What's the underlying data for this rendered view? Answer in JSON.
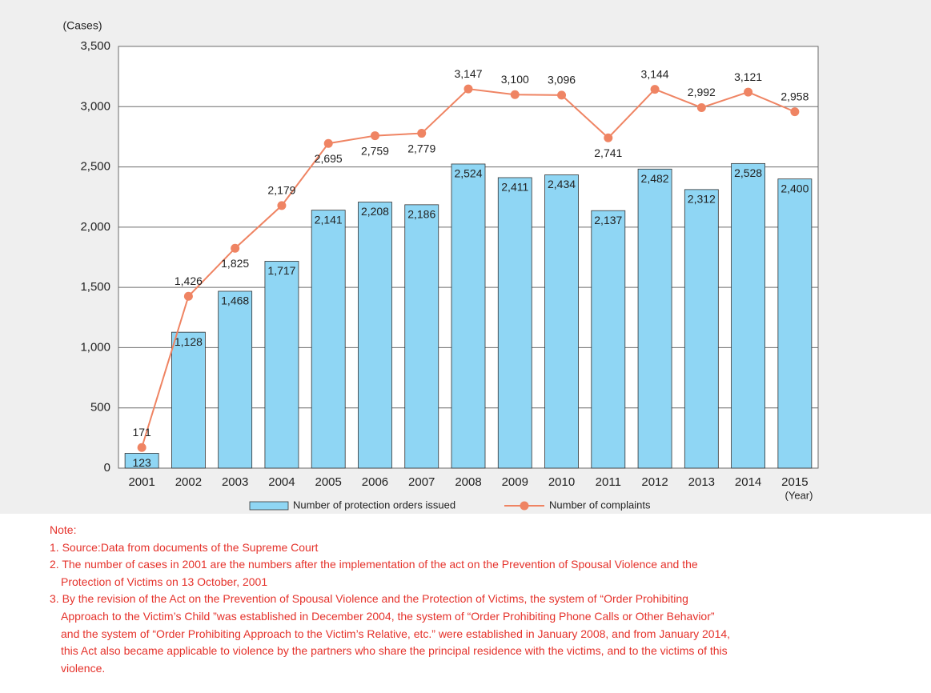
{
  "chart_data": {
    "type": "bar_line",
    "y_unit": "(Cases)",
    "x_unit": "(Year)",
    "categories": [
      "2001",
      "2002",
      "2003",
      "2004",
      "2005",
      "2006",
      "2007",
      "2008",
      "2009",
      "2010",
      "2011",
      "2012",
      "2013",
      "2014",
      "2015"
    ],
    "series": [
      {
        "name": "Number of protection orders issued",
        "kind": "bar",
        "color": "#8fd6f4",
        "values": [
          123,
          1128,
          1468,
          1717,
          2141,
          2208,
          2186,
          2524,
          2411,
          2434,
          2137,
          2482,
          2312,
          2528,
          2400
        ],
        "value_labels": [
          "123",
          "1,128",
          "1,468",
          "1,717",
          "2,141",
          "2,208",
          "2,186",
          "2,524",
          "2,411",
          "2,434",
          "2,137",
          "2,482",
          "2,312",
          "2,528",
          "2,400"
        ]
      },
      {
        "name": "Number of complaints",
        "kind": "line",
        "color": "#ef8463",
        "values": [
          171,
          1426,
          1825,
          2179,
          2695,
          2759,
          2779,
          3147,
          3100,
          3096,
          2741,
          3144,
          2992,
          3121,
          2958
        ],
        "value_labels": [
          "171",
          "1,426",
          "1,825",
          "2,179",
          "2,695",
          "2,759",
          "2,779",
          "3,147",
          "3,100",
          "3,096",
          "2,741",
          "3,144",
          "2,992",
          "3,121",
          "2,958"
        ]
      }
    ],
    "ylim": [
      0,
      3500
    ],
    "yticks": [
      0,
      500,
      {
        "value": 1000,
        "label": "1,000"
      },
      {
        "value": 1500,
        "label": "1,500"
      },
      {
        "value": 2000,
        "label": "2,000"
      },
      {
        "value": 2500,
        "label": "2,500"
      },
      {
        "value": 3000,
        "label": "3,000"
      },
      {
        "value": 3500,
        "label": "3,500"
      }
    ],
    "grid": true
  },
  "notes": {
    "heading": "Note:",
    "items": [
      [
        "1. Source:Data from documents of the Supreme Court"
      ],
      [
        "2. The number of cases in 2001 are the numbers after the implementation of the act on the Prevention of Spousal Violence and the",
        "Protection of Victims on 13 October, 2001"
      ],
      [
        "3. By the revision of the Act on the Prevention of Spousal Violence and the Protection of Victims, the system of “Order Prohibiting",
        "Approach to the Victim’s Child ”was established in December 2004, the system of “Order Prohibiting Phone Calls or Other Behavior”",
        "and the system of “Order Prohibiting Approach to the Victim’s Relative, etc.” were established in January 2008, and from January 2014,",
        "this Act also became applicable to violence by the partners who share the principal residence  with the victims, and to the victims of this",
        "violence."
      ]
    ]
  }
}
